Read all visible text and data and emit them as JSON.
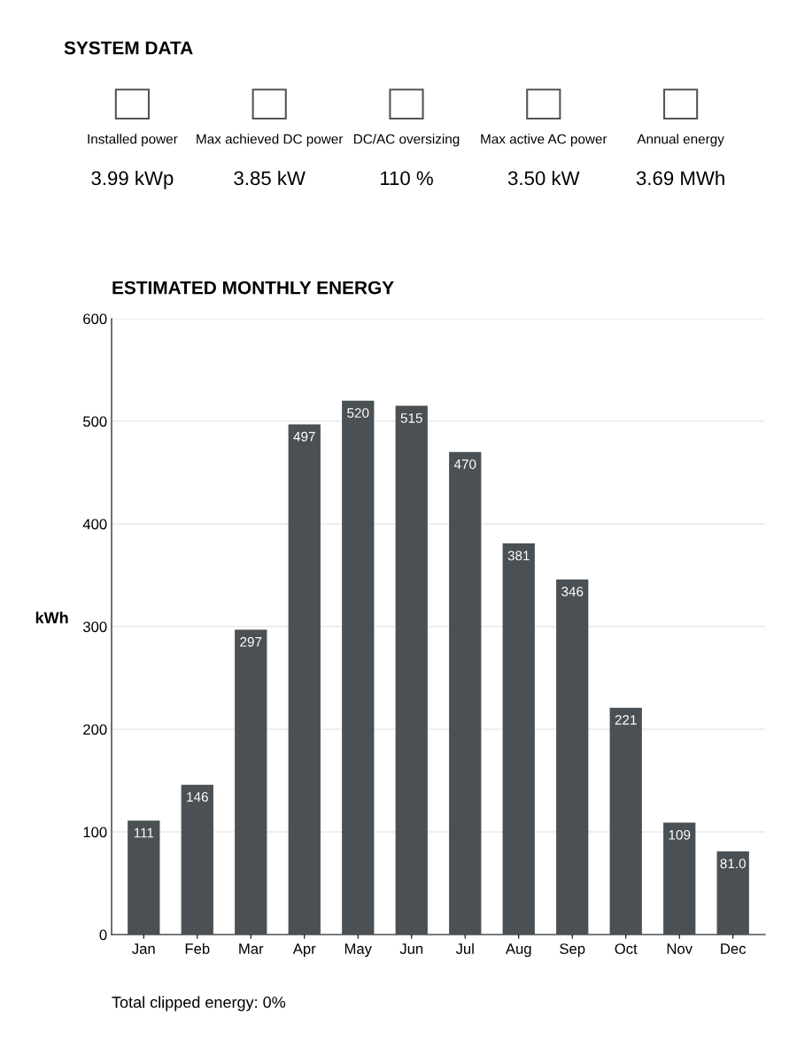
{
  "chart_data": [
    {
      "type": "other",
      "title": "SYSTEM DATA",
      "annotations": [
        "Installed power",
        "3.99 kWp",
        "Max achieved DC power",
        "3.85 kW",
        "DC/AC oversizing",
        "110 %",
        "Max active AC power",
        "3.50 kW",
        "Annual energy",
        "3.69 MWh"
      ]
    },
    {
      "type": "bar",
      "title": "ESTIMATED MONTHLY ENERGY",
      "ylabel": "kWh",
      "categories": [
        "Jan",
        "Feb",
        "Mar",
        "Apr",
        "May",
        "Jun",
        "Jul",
        "Aug",
        "Sep",
        "Oct",
        "Nov",
        "Dec"
      ],
      "values": [
        111,
        146,
        297,
        497,
        520,
        515,
        470,
        381,
        346,
        221,
        109,
        81.0
      ],
      "value_labels": [
        "111",
        "146",
        "297",
        "497",
        "520",
        "515",
        "470",
        "381",
        "346",
        "221",
        "109",
        "81.0"
      ],
      "color": "#4a5053",
      "ylim": [
        0,
        600
      ],
      "yticks": [
        0,
        100,
        200,
        300,
        400,
        500,
        600
      ],
      "grid": "y",
      "annotations": [
        "Total clipped energy: 0%"
      ]
    }
  ]
}
